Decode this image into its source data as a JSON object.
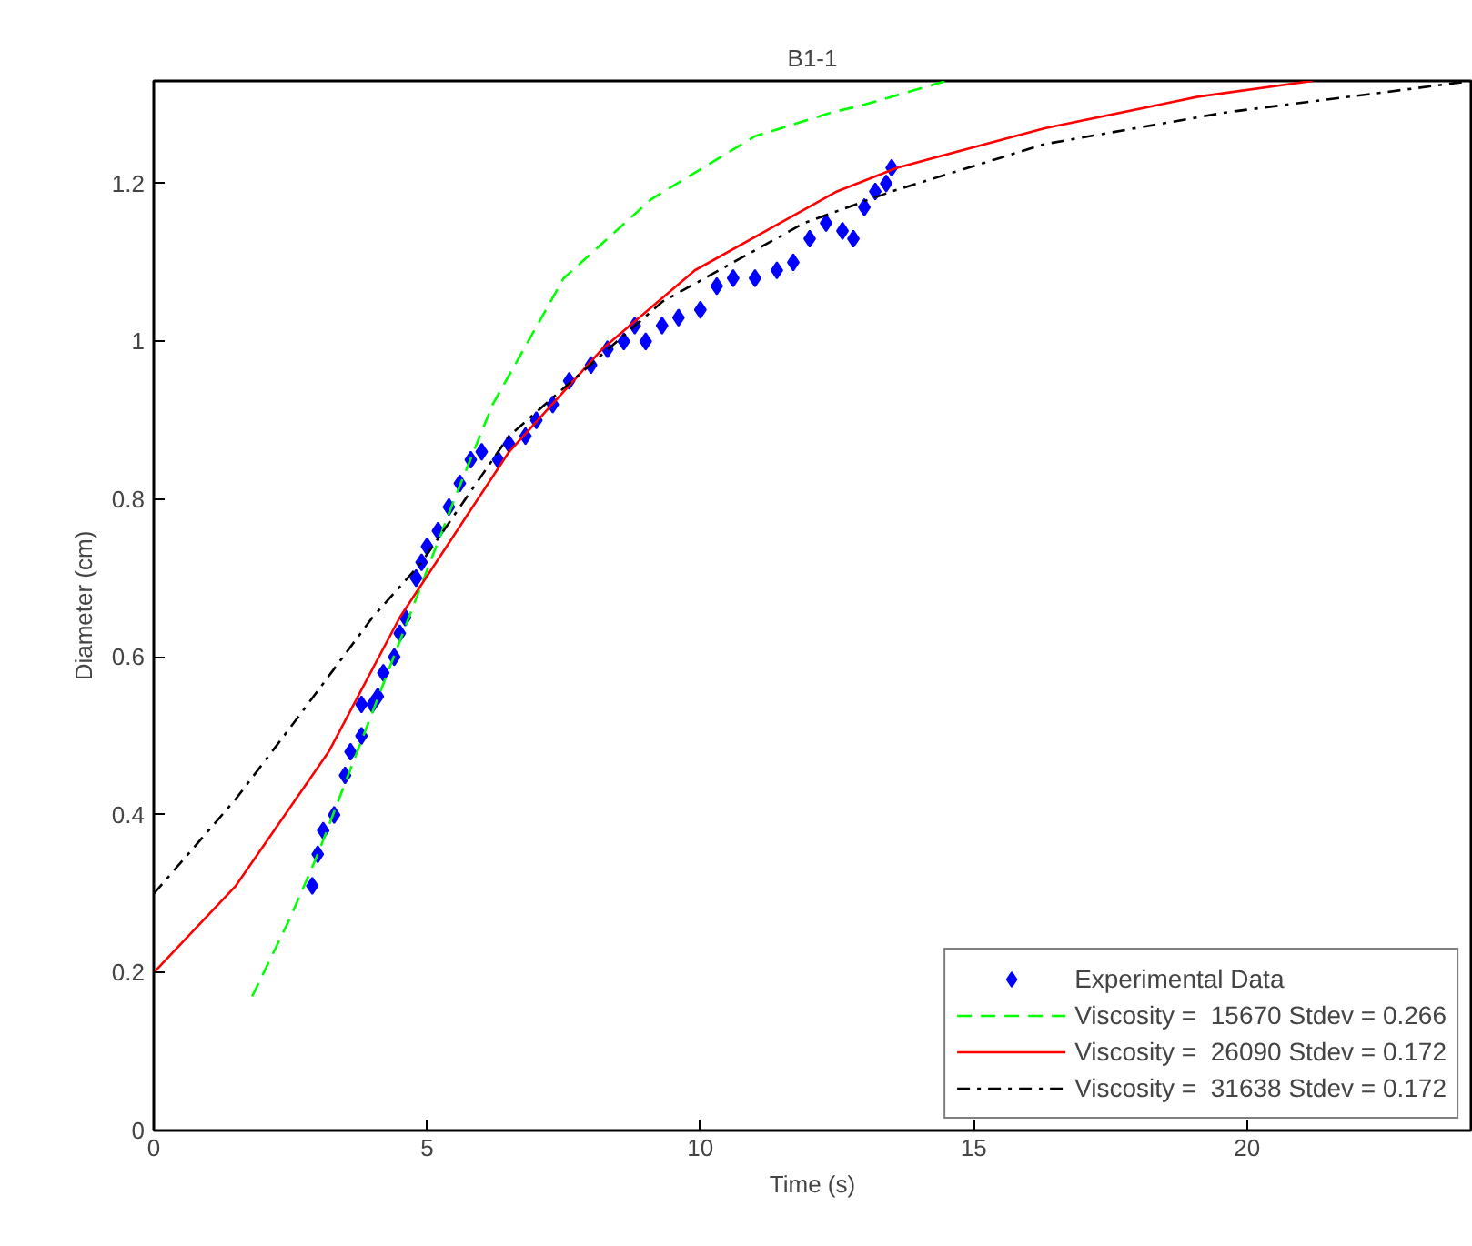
{
  "chart_data": {
    "type": "line",
    "title": "B1-1",
    "xlabel": "Time (s)",
    "ylabel": "Diameter (cm)",
    "xlim": [
      0,
      24.1
    ],
    "ylim": [
      0,
      1.33
    ],
    "xticks": [
      0,
      5,
      10,
      15,
      20
    ],
    "yticks": [
      {
        "value": 0,
        "label": "0"
      },
      0.2,
      0.4,
      0.6,
      0.8,
      {
        "value": 1,
        "label": "1"
      },
      1.2
    ],
    "grid": false,
    "legend": "bottom right",
    "series": [
      {
        "name": "Experimental Data",
        "type": "scatter",
        "marker": "diamond",
        "color": "#0000ff",
        "x": [
          2.9,
          3.0,
          3.1,
          3.3,
          3.5,
          3.6,
          3.8,
          3.8,
          4.0,
          4.1,
          4.2,
          4.4,
          4.5,
          4.6,
          4.8,
          4.9,
          5.0,
          5.2,
          5.4,
          5.6,
          5.8,
          6.0,
          6.3,
          6.5,
          6.8,
          7.0,
          7.3,
          7.6,
          8.0,
          8.3,
          8.6,
          8.8,
          9.0,
          9.3,
          9.6,
          10.0,
          10.3,
          10.6,
          11.0,
          11.4,
          11.7,
          12.0,
          12.3,
          12.6,
          12.8,
          13.0,
          13.2,
          13.4,
          13.5
        ],
        "values": [
          0.31,
          0.35,
          0.38,
          0.4,
          0.45,
          0.48,
          0.5,
          0.54,
          0.54,
          0.55,
          0.58,
          0.6,
          0.63,
          0.65,
          0.7,
          0.72,
          0.74,
          0.76,
          0.79,
          0.82,
          0.85,
          0.86,
          0.85,
          0.87,
          0.88,
          0.9,
          0.92,
          0.95,
          0.97,
          0.99,
          1.0,
          1.02,
          1.0,
          1.02,
          1.03,
          1.04,
          1.07,
          1.08,
          1.08,
          1.09,
          1.1,
          1.13,
          1.15,
          1.14,
          1.13,
          1.17,
          1.19,
          1.2,
          1.22
        ]
      },
      {
        "name": "Viscosity =  15670 Stdev = 0.266",
        "line_style": "dashed",
        "color": "#00ff00",
        "x": [
          1.8,
          2.5,
          3,
          4,
          5,
          5.5,
          6.2,
          7.5,
          9.1,
          11,
          12.4,
          13,
          14.5
        ],
        "values": [
          0.17,
          0.27,
          0.35,
          0.53,
          0.71,
          0.8,
          0.92,
          1.08,
          1.18,
          1.26,
          1.29,
          1.3,
          1.33
        ]
      },
      {
        "name": "Viscosity =  26090 Stdev = 0.172",
        "line_style": "solid",
        "color": "#ff0000",
        "x": [
          0,
          1.5,
          3.2,
          4.5,
          6.5,
          8.2,
          9.9,
          12.5,
          13.6,
          16.3,
          19.1,
          21.2
        ],
        "values": [
          0.2,
          0.31,
          0.48,
          0.65,
          0.86,
          0.99,
          1.09,
          1.19,
          1.22,
          1.27,
          1.31,
          1.33
        ]
      },
      {
        "name": "Viscosity =  31638 Stdev = 0.172",
        "line_style": "dashdot",
        "color": "#000000",
        "x": [
          0,
          1.5,
          2.6,
          4.0,
          4.9,
          6.5,
          9.3,
          11.9,
          13.5,
          16.3,
          19.6,
          23,
          24.1
        ],
        "values": [
          0.3,
          0.42,
          0.52,
          0.65,
          0.72,
          0.88,
          1.05,
          1.15,
          1.19,
          1.25,
          1.29,
          1.32,
          1.33
        ]
      }
    ]
  }
}
